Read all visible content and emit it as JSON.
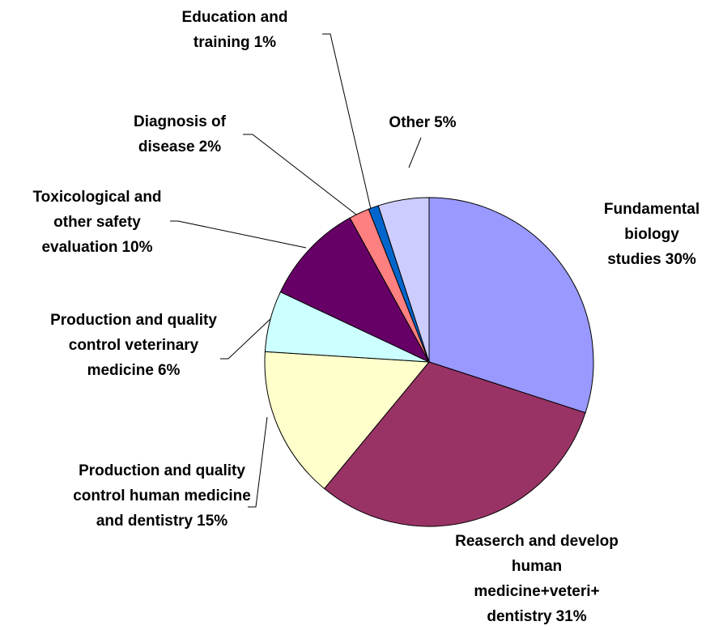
{
  "chart_data": {
    "type": "pie",
    "categories": [
      "Fundamental biology studies",
      "Reaserch and develop human medicine+veteri+ dentistry",
      "Production and quality control human medicine and dentistry",
      "Production and quality control veterinary medicine",
      "Toxicological and other safety evaluation",
      "Diagnosis of disease",
      "Education and training",
      "Other"
    ],
    "values": [
      30,
      31,
      15,
      6,
      10,
      2,
      1,
      5
    ],
    "value_labels": [
      "30%",
      "31%",
      "15%",
      "6%",
      "10%",
      "2%",
      "1%",
      "5%"
    ],
    "colors": [
      "#9999ff",
      "#993366",
      "#ffffcc",
      "#ccffff",
      "#660066",
      "#ff8080",
      "#0066cc",
      "#ccccff"
    ]
  }
}
